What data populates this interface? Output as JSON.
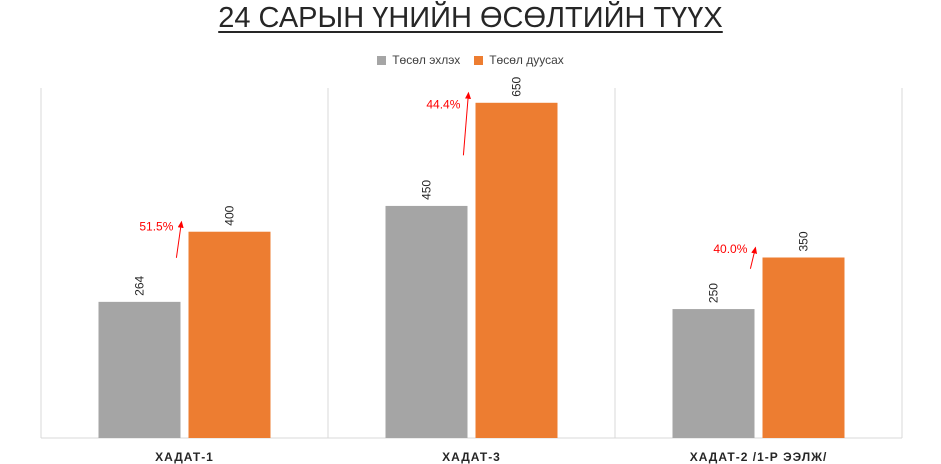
{
  "colors": {
    "series1": "#a5a5a5",
    "series2": "#ed7d31",
    "growth": "#ff0000",
    "grid": "#d9d9d9"
  },
  "chart_data": {
    "type": "bar",
    "title": "24 САРЫН ҮНИЙН ӨСӨЛТИЙН ТҮҮХ",
    "categories": [
      "ХАДАТ-1",
      "ХАДАТ-3",
      "ХАДАТ-2 /1-Р ЭЭЛЖ/"
    ],
    "series": [
      {
        "name": "Төсөл эхлэх",
        "values": [
          264,
          450,
          250
        ]
      },
      {
        "name": "Төсөл дуусах",
        "values": [
          400,
          650,
          350
        ]
      }
    ],
    "growth_labels": [
      "51.5%",
      "44.4%",
      "40.0%"
    ],
    "ylim": [
      0,
      700
    ],
    "legend": "top",
    "grid": false
  }
}
